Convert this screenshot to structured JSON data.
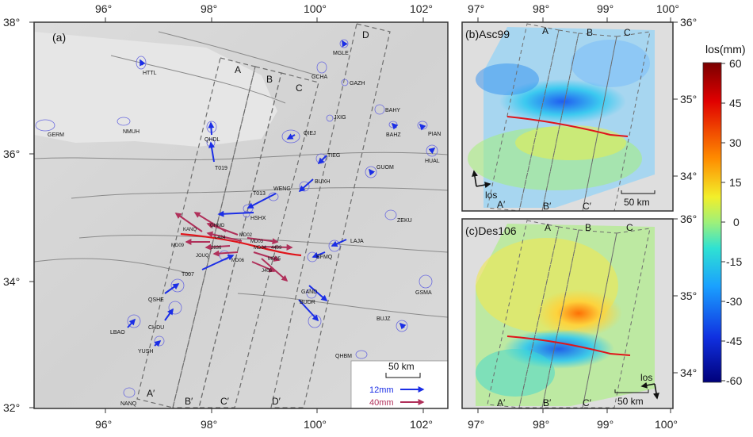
{
  "colors": {
    "blue": "#1b2ee6",
    "red": "#b0305a",
    "fault": "#e0141a",
    "box": "#6d6d6d"
  },
  "panel_a": {
    "label": "(a)",
    "x_ticks": [
      "96°",
      "98°",
      "100°",
      "102°"
    ],
    "y_ticks": [
      "38°",
      "36°",
      "34°",
      "32°"
    ],
    "block_labels": [
      "A",
      "B",
      "C",
      "D"
    ],
    "block_labels_prime": [
      "A′",
      "B′",
      "C′",
      "D′"
    ],
    "stations": [
      "HTTL",
      "MGLE",
      "GCHA",
      "GAZH",
      "BAHY",
      "JXIG",
      "BAHZ",
      "PIAN",
      "GERM",
      "NMUH",
      "QHDL",
      "QIEJ",
      "TIEG",
      "HUAL",
      "GUOM",
      "T019",
      "BUXH",
      "WENG",
      "T013",
      "HSHX",
      "ZEKU",
      "QHMD",
      "KANQ",
      "L424",
      "MD02",
      "MD03",
      "MD04",
      "4499",
      "MD09",
      "2836",
      "JOUQ",
      "MD05",
      "T007",
      "MD06",
      "J406",
      "LAJA",
      "BFMQ",
      "GSMA",
      "GAND",
      "BUDR",
      "QSHE",
      "CHDU",
      "LBAO",
      "YUSH",
      "BUJZ",
      "QHBM",
      "NANQ"
    ],
    "scale_label": "50 km",
    "legend_blue": "12mm",
    "legend_red": "40mm"
  },
  "panel_b": {
    "label": "(b)Asc99",
    "x_ticks": [
      "97°",
      "98°",
      "99°",
      "100°"
    ],
    "y_ticks": [
      "36°",
      "35°",
      "34°"
    ],
    "block_labels": [
      "A",
      "B",
      "C"
    ],
    "block_labels_prime": [
      "A′",
      "B′",
      "C′"
    ],
    "los_label": "los",
    "scale_label": "50 km"
  },
  "panel_c": {
    "label": "(c)Des106",
    "x_ticks": [
      "97°",
      "98°",
      "99°",
      "100°"
    ],
    "y_ticks": [
      "36°",
      "35°",
      "34°"
    ],
    "block_labels": [
      "A",
      "B",
      "C"
    ],
    "block_labels_prime": [
      "A′",
      "B′",
      "C′"
    ],
    "los_label": "los",
    "scale_label": "50 km"
  },
  "colorbar": {
    "title": "los(mm)",
    "ticks": [
      "60",
      "45",
      "30",
      "15",
      "0",
      "-15",
      "-30",
      "-45",
      "-60"
    ]
  }
}
